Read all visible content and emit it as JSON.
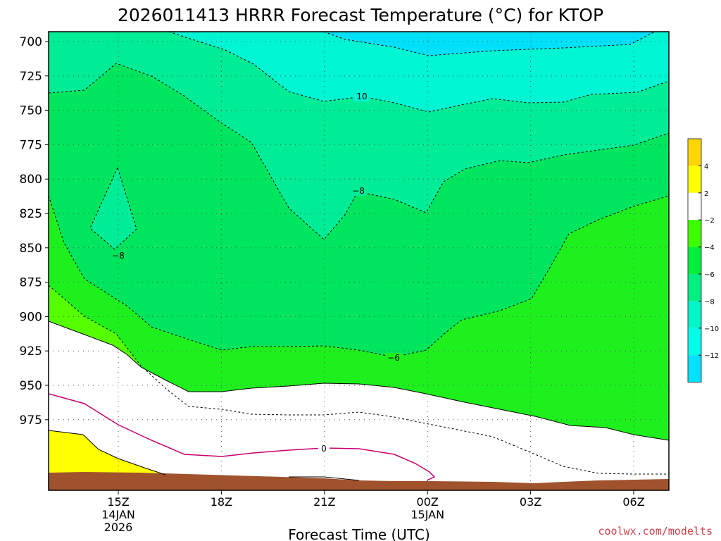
{
  "chart_data": {
    "type": "heatmap",
    "title": "2026011413 HRRR Forecast Temperature (°C) for KTOP",
    "xlabel": "Forecast Time (UTC)",
    "ylabel": "",
    "y_ticks": [
      "700",
      "725",
      "750",
      "775",
      "800",
      "825",
      "850",
      "875",
      "900",
      "925",
      "950",
      "975"
    ],
    "x_ticks": [
      {
        "lines": [
          "15Z",
          "14JAN",
          "2026"
        ]
      },
      {
        "lines": [
          "18Z"
        ]
      },
      {
        "lines": [
          "21Z"
        ]
      },
      {
        "lines": [
          "00Z",
          "15JAN"
        ]
      },
      {
        "lines": [
          "03Z"
        ]
      },
      {
        "lines": [
          "06Z"
        ]
      }
    ],
    "contour_labels": [
      "10",
      "−8",
      "−8",
      "−6",
      "0"
    ],
    "colorbar": {
      "ticks": [
        "4",
        "2",
        "−2",
        "−4",
        "−6",
        "−8",
        "−10",
        "−12"
      ],
      "colors": [
        "#ffd700",
        "#ffff00",
        "#ffffff",
        "#3cff00",
        "#00f03c",
        "#00ee82",
        "#00f5c8",
        "#00ffe8",
        "#00e0ff"
      ]
    },
    "fill_colors": {
      "warm": "#ffff00",
      "above_zero": "#ffffff",
      "minus2_to_minus4": "#55ff00",
      "minus4_to_minus6": "#1ef01e",
      "minus6_to_minus8": "#00e55e",
      "minus8_to_minus10": "#00ec96",
      "minus10_to_minus12": "#00f5d2",
      "below_minus12": "#00e0f8",
      "terrain": "#a0522d",
      "zero_line": "#c8006e"
    },
    "credit": "coolwx.com/modelts"
  }
}
